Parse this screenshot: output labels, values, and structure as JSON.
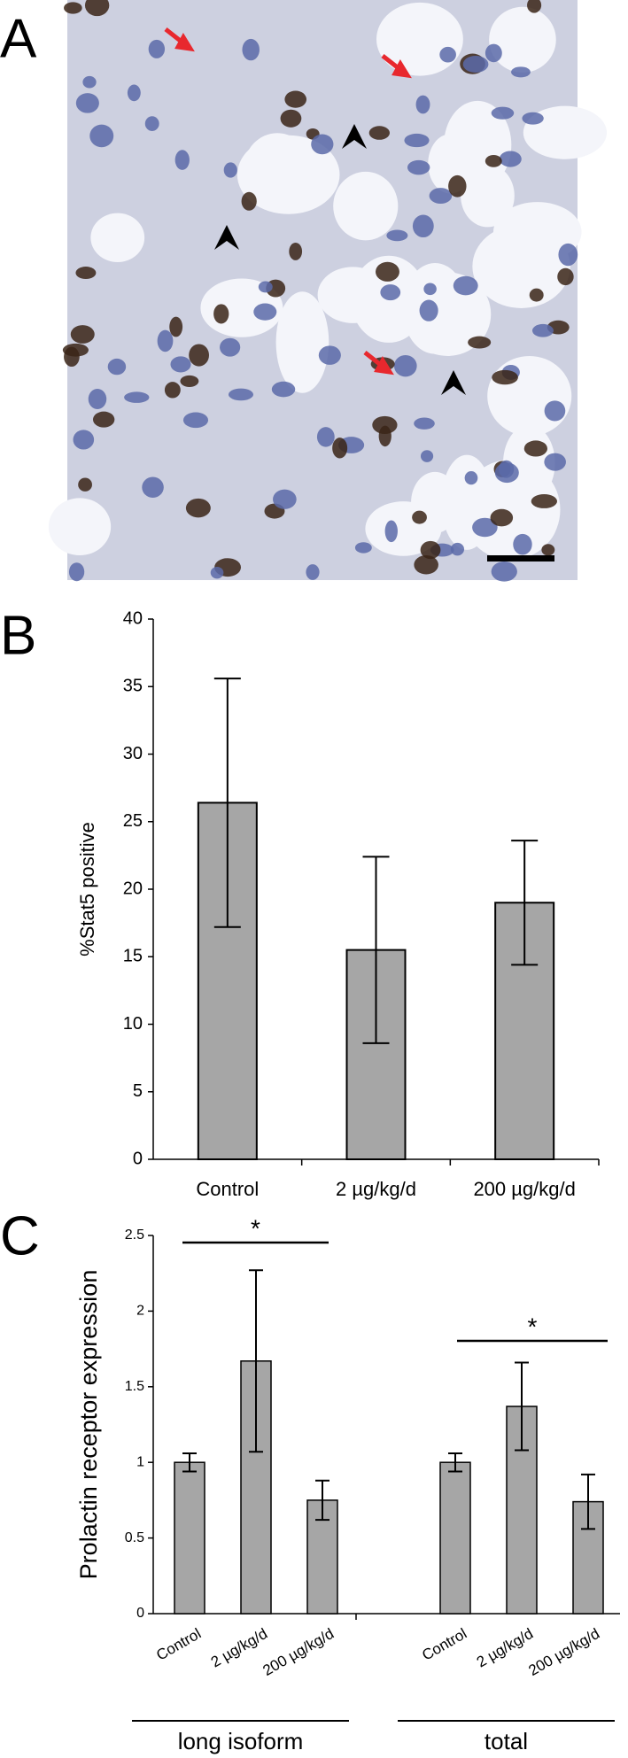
{
  "panel_labels": [
    "A",
    "B",
    "C"
  ],
  "chart_data": [
    {
      "type": "bar",
      "ylabel": "%Stat5 positive",
      "categories": [
        "Control",
        "2 µg/kg/d",
        "200 µg/kg/d"
      ],
      "values": [
        26.4,
        15.5,
        19.0
      ],
      "errors": [
        9.2,
        6.9,
        4.6
      ],
      "color": "#a6a6a6",
      "ylim": [
        0,
        40
      ],
      "yticks": [
        0,
        5,
        10,
        15,
        20,
        25,
        30,
        35,
        40
      ]
    },
    {
      "type": "grouped_bar",
      "ylabel": "Prolactin receptor expression",
      "color": "#a6a6a6",
      "ylim": [
        0,
        2.5
      ],
      "yticks": [
        0,
        0.5,
        1,
        1.5,
        2,
        2.5
      ],
      "groups": [
        {
          "name": "long isoform",
          "annotation": "*",
          "categories": [
            "Control",
            "2 µg/kg/d",
            "200 µg/kg/d"
          ],
          "values": [
            1.0,
            1.67,
            0.75
          ],
          "errors": [
            0.06,
            0.6,
            0.13
          ]
        },
        {
          "name": "total",
          "annotation": "*",
          "categories": [
            "Control",
            "2 µg/kg/d",
            "200 µg/kg/d"
          ],
          "values": [
            1.0,
            1.37,
            0.74
          ],
          "errors": [
            0.06,
            0.29,
            0.18
          ]
        }
      ]
    }
  ]
}
